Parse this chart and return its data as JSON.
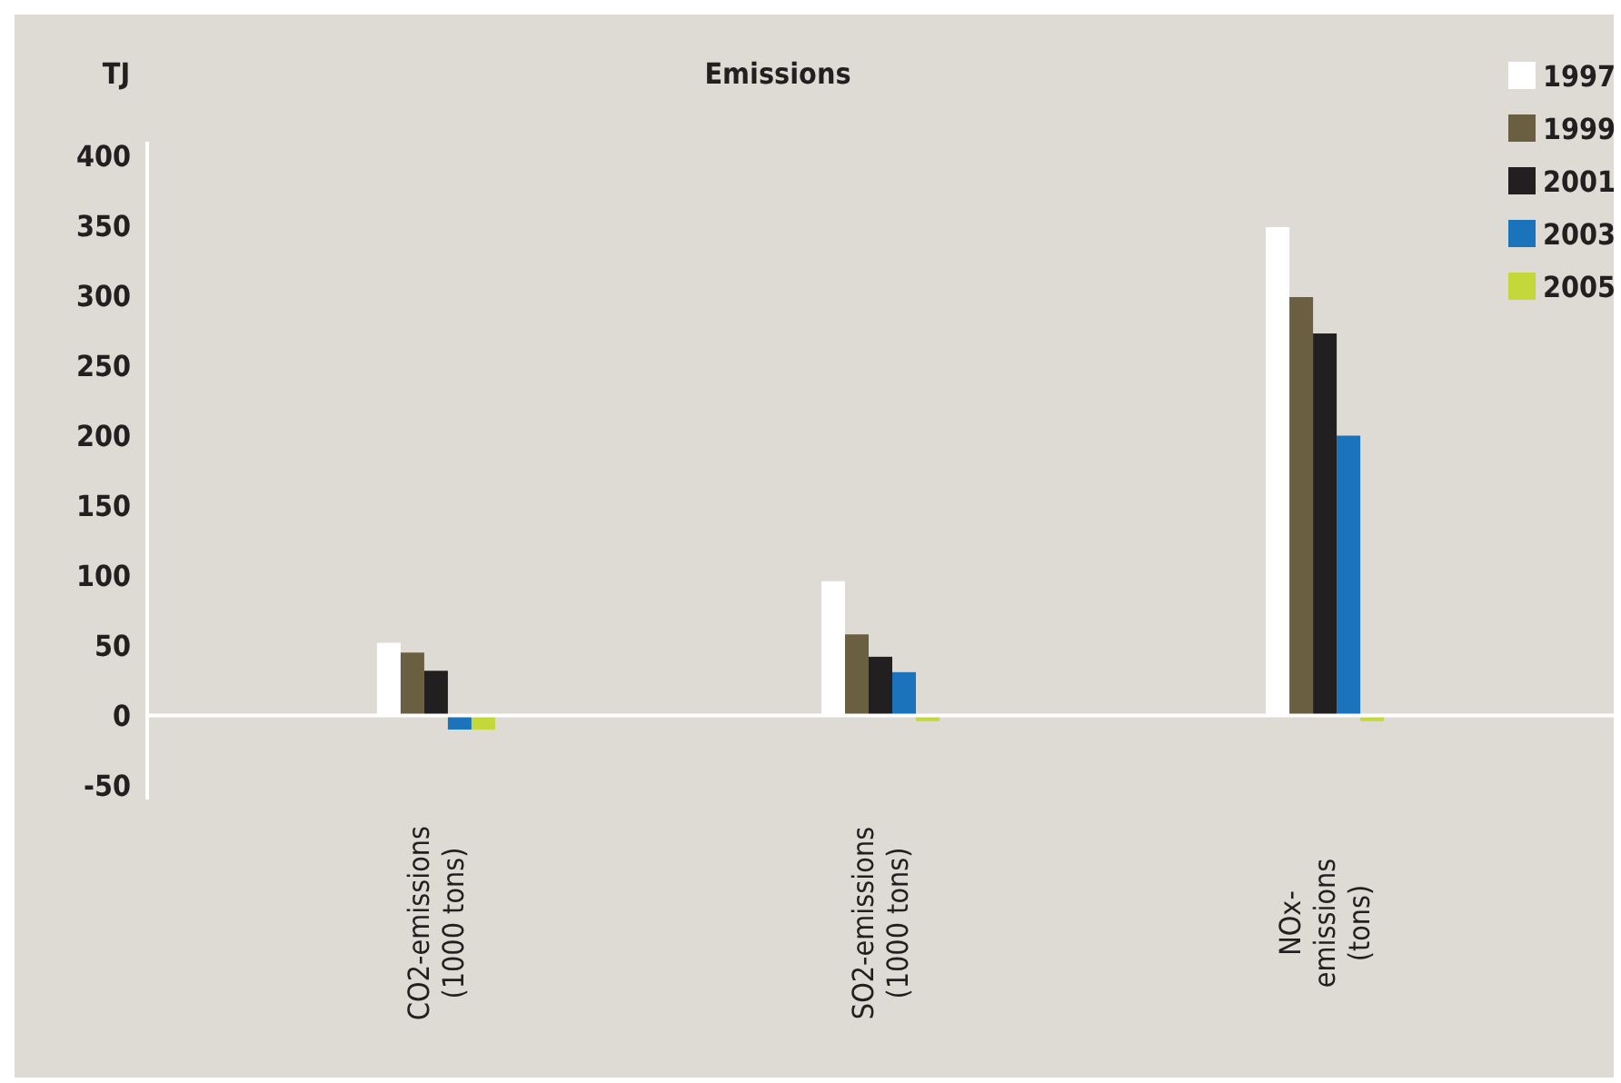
{
  "chart_data": {
    "type": "bar",
    "title": "Emissions",
    "ylabel": "TJ",
    "categories": [
      "CO2-emissions\n(1000 tons)",
      "SO2-emissions\n(1000 tons)",
      "NOx-\nemissions\n(tons)"
    ],
    "series": [
      {
        "name": "1997",
        "color": "#ffffff",
        "values": [
          52,
          96,
          349
        ]
      },
      {
        "name": "1999",
        "color": "#6b5f42",
        "values": [
          45,
          58,
          299
        ]
      },
      {
        "name": "2001",
        "color": "#221f20",
        "values": [
          32,
          42,
          273
        ]
      },
      {
        "name": "2003",
        "color": "#1a73bb",
        "values": [
          -10,
          31,
          200
        ]
      },
      {
        "name": "2005",
        "color": "#c4d83a",
        "values": [
          -10,
          -4,
          -4
        ]
      }
    ],
    "ylim": [
      -60,
      410
    ],
    "yticks": [
      -50,
      0,
      50,
      100,
      150,
      200,
      250,
      300,
      350,
      400
    ],
    "legend": "top right"
  }
}
